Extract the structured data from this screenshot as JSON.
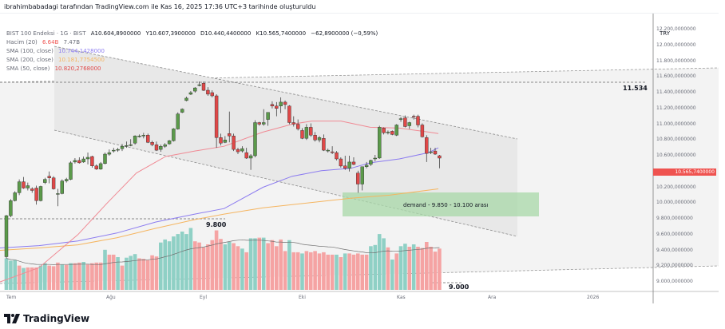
{
  "caption": "ibrahimbabadagi tarafından TradingView.com ile Kas 16, 2025 17:36 UTC+3 tarihinde oluşturuldu",
  "legend": {
    "symbol": "BIST 100 Endeksi · 1G · BIST",
    "open": "A10.604,8900000",
    "high": "Y10.607,3900000",
    "low": "D10.440,4400000",
    "close": "K10.565,7400000",
    "change": "−62,8900000 (−0,59%)",
    "volume_label": "Hacim (20)",
    "volume_value": "6.64B",
    "volume_ma": "7.47B",
    "sma100_label": "SMA (100, close)",
    "sma100_value": "10.744,1428000",
    "sma200_label": "SMA (200, close)",
    "sma200_value": "10.181,7754500",
    "sma50_label": "SMA (50, close)",
    "sma50_value": "10.820,2768000"
  },
  "colors": {
    "up": "#5b9a4a",
    "down": "#e04848",
    "vol_up": "#8fd0c5",
    "vol_down": "#f5a3a3",
    "sma50": "#f08a94",
    "sma100": "#8c7cf0",
    "sma200": "#f5b560",
    "demand_zone": "#a8d8a8",
    "channel": "#e6e6e6"
  },
  "price_axis": {
    "currency": "TRY",
    "ticks": [
      "12.200,0000000",
      "12.000,0000000",
      "11.800,0000000",
      "11.600,0000000",
      "11.400,0000000",
      "11.200,0000000",
      "11.000,0000000",
      "10.800,0000000",
      "10.600,0000000",
      "10.400,0000000",
      "10.200,0000000",
      "10.000,0000000",
      "9.800,0000000",
      "9.600,0000000",
      "9.400,0000000",
      "9.200,0000000",
      "9.000,0000000"
    ],
    "last_price": "10.565,7400000"
  },
  "time_axis": [
    "Tem",
    "Ağu",
    "Eyl",
    "Eki",
    "Kas",
    "Ara",
    "2026"
  ],
  "annotations": {
    "resistance": "11.534",
    "support_1": "9.800",
    "support_2": "9.000",
    "demand": "demand - 9.850 - 10.100 arası"
  },
  "brand": "TradingView",
  "chart_data": {
    "type": "candlestick",
    "title": "BIST 100 Endeksi · 1G · BIST",
    "xlabel": "",
    "ylabel": "TRY",
    "ylim": [
      8950,
      12250
    ],
    "x_ticks": [
      "Tem",
      "Ağu",
      "Eyl",
      "Eki",
      "Kas",
      "Ara",
      "2026"
    ],
    "candles": [
      [
        9320,
        9850,
        9300,
        9840
      ],
      [
        9840,
        10050,
        9820,
        10030
      ],
      [
        10030,
        10150,
        10020,
        10130
      ],
      [
        10130,
        10300,
        10100,
        10270
      ],
      [
        10270,
        10330,
        10180,
        10190
      ],
      [
        10190,
        10260,
        10160,
        10220
      ],
      [
        10180,
        10200,
        10130,
        10160
      ],
      [
        10190,
        10220,
        9980,
        10030
      ],
      [
        10030,
        10220,
        10020,
        10210
      ],
      [
        10260,
        10320,
        10240,
        10300
      ],
      [
        10340,
        10400,
        10250,
        10320
      ],
      [
        10320,
        10340,
        10170,
        10180
      ],
      [
        10110,
        10180,
        9960,
        10120
      ],
      [
        10120,
        10300,
        10110,
        10280
      ],
      [
        10280,
        10320,
        10260,
        10300
      ],
      [
        10300,
        10530,
        10290,
        10510
      ],
      [
        10520,
        10570,
        10500,
        10540
      ],
      [
        10540,
        10580,
        10500,
        10510
      ],
      [
        10520,
        10590,
        10510,
        10560
      ],
      [
        10560,
        10640,
        10490,
        10580
      ],
      [
        10590,
        10600,
        10450,
        10470
      ],
      [
        10470,
        10490,
        10420,
        10430
      ],
      [
        10430,
        10520,
        10420,
        10500
      ],
      [
        10500,
        10640,
        10490,
        10620
      ],
      [
        10620,
        10680,
        10600,
        10640
      ],
      [
        10660,
        10700,
        10640,
        10670
      ],
      [
        10670,
        10700,
        10650,
        10680
      ],
      [
        10690,
        10750,
        10660,
        10720
      ],
      [
        10720,
        10780,
        10700,
        10730
      ],
      [
        10730,
        10810,
        10720,
        10740
      ],
      [
        10760,
        10860,
        10740,
        10850
      ],
      [
        10850,
        10870,
        10830,
        10850
      ],
      [
        10860,
        10890,
        10820,
        10860
      ],
      [
        10860,
        10880,
        10760,
        10770
      ],
      [
        10770,
        10790,
        10720,
        10740
      ],
      [
        10740,
        10780,
        10660,
        10670
      ],
      [
        10680,
        10740,
        10650,
        10720
      ],
      [
        10720,
        10760,
        10700,
        10740
      ],
      [
        10750,
        10800,
        10740,
        10790
      ],
      [
        10790,
        10950,
        10780,
        10940
      ],
      [
        10940,
        11150,
        10930,
        11130
      ],
      [
        11150,
        11200,
        11140,
        11190
      ],
      [
        11300,
        11350,
        11290,
        11330
      ],
      [
        11380,
        11420,
        11370,
        11400
      ],
      [
        11420,
        11470,
        11400,
        11460
      ],
      [
        11490,
        11540,
        11480,
        11500
      ],
      [
        11520,
        11540,
        11420,
        11430
      ],
      [
        11430,
        11470,
        11360,
        11380
      ],
      [
        11400,
        11430,
        11340,
        11360
      ],
      [
        11360,
        11380,
        10700,
        10830
      ],
      [
        10830,
        10880,
        10730,
        10760
      ],
      [
        10770,
        10850,
        10760,
        10800
      ],
      [
        10880,
        11160,
        10770,
        10850
      ],
      [
        10850,
        10880,
        10660,
        10680
      ],
      [
        10680,
        10700,
        10620,
        10650
      ],
      [
        10660,
        10720,
        10640,
        10690
      ],
      [
        10640,
        10700,
        10560,
        10570
      ],
      [
        10570,
        10620,
        10420,
        10600
      ],
      [
        10600,
        11050,
        10580,
        11020
      ],
      [
        11020,
        11030,
        10980,
        11000
      ],
      [
        11000,
        11190,
        10980,
        11020
      ],
      [
        11060,
        11140,
        10980,
        11150
      ],
      [
        11250,
        11290,
        11200,
        11230
      ],
      [
        11230,
        11280,
        11100,
        11200
      ],
      [
        11230,
        11340,
        11140,
        11280
      ],
      [
        11280,
        11300,
        11190,
        11250
      ],
      [
        11230,
        11240,
        11000,
        11020
      ],
      [
        11020,
        11100,
        10970,
        11000
      ],
      [
        11000,
        11060,
        10920,
        10940
      ],
      [
        10920,
        10950,
        10810,
        10820
      ],
      [
        10820,
        11000,
        10800,
        10960
      ],
      [
        10960,
        11010,
        10840,
        10860
      ],
      [
        10860,
        10900,
        10780,
        10800
      ],
      [
        10800,
        10850,
        10770,
        10830
      ],
      [
        10820,
        10870,
        10660,
        10670
      ],
      [
        10670,
        10690,
        10640,
        10670
      ],
      [
        10650,
        10720,
        10620,
        10640
      ],
      [
        10640,
        10660,
        10540,
        10560
      ],
      [
        10560,
        10580,
        10450,
        10470
      ],
      [
        10470,
        10600,
        10420,
        10440
      ],
      [
        10440,
        10600,
        10400,
        10520
      ],
      [
        10520,
        10580,
        10480,
        10490
      ],
      [
        10380,
        10410,
        10130,
        10240
      ],
      [
        10240,
        10460,
        10160,
        10460
      ],
      [
        10460,
        10520,
        10440,
        10480
      ],
      [
        10490,
        10550,
        10470,
        10540
      ],
      [
        10560,
        10610,
        10530,
        10570
      ],
      [
        10570,
        10980,
        10560,
        10960
      ],
      [
        10950,
        10960,
        10870,
        10890
      ],
      [
        10890,
        10920,
        10870,
        10900
      ],
      [
        10910,
        10920,
        10860,
        10870
      ],
      [
        10860,
        11000,
        10850,
        10990
      ],
      [
        11060,
        11090,
        11030,
        11070
      ],
      [
        11080,
        11110,
        10960,
        10970
      ],
      [
        10980,
        11030,
        10940,
        11020
      ],
      [
        11100,
        11120,
        11060,
        11090
      ],
      [
        11100,
        11120,
        10960,
        10990
      ],
      [
        10990,
        11010,
        10830,
        10840
      ],
      [
        10830,
        10860,
        10520,
        10630
      ],
      [
        10640,
        10700,
        10620,
        10650
      ],
      [
        10660,
        10700,
        10610,
        10620
      ],
      [
        10600,
        10610,
        10440,
        10570
      ]
    ],
    "sma50": [
      [
        0,
        9000
      ],
      [
        20,
        9180
      ],
      [
        40,
        9600
      ],
      [
        55,
        10000
      ],
      [
        70,
        10380
      ],
      [
        85,
        10590
      ],
      [
        100,
        10660
      ],
      [
        115,
        10720
      ],
      [
        135,
        10900
      ],
      [
        150,
        11000
      ],
      [
        160,
        11040
      ],
      [
        175,
        11040
      ],
      [
        190,
        10960
      ],
      [
        205,
        10950
      ],
      [
        220,
        10900
      ],
      [
        225,
        10880
      ]
    ],
    "sma100": [
      [
        0,
        9430
      ],
      [
        20,
        9460
      ],
      [
        40,
        9520
      ],
      [
        60,
        9620
      ],
      [
        80,
        9760
      ],
      [
        100,
        9860
      ],
      [
        115,
        9930
      ],
      [
        135,
        10200
      ],
      [
        150,
        10340
      ],
      [
        165,
        10410
      ],
      [
        180,
        10440
      ],
      [
        190,
        10510
      ],
      [
        205,
        10560
      ],
      [
        220,
        10640
      ],
      [
        225,
        10700
      ]
    ],
    "sma200": [
      [
        0,
        9400
      ],
      [
        20,
        9430
      ],
      [
        40,
        9470
      ],
      [
        60,
        9560
      ],
      [
        80,
        9680
      ],
      [
        100,
        9790
      ],
      [
        115,
        9860
      ],
      [
        135,
        9940
      ],
      [
        150,
        9980
      ],
      [
        165,
        10020
      ],
      [
        180,
        10060
      ],
      [
        200,
        10100
      ],
      [
        225,
        10180
      ]
    ],
    "volume": [
      [
        "u",
        52
      ],
      [
        "u",
        48
      ],
      [
        "u",
        49
      ],
      [
        "d",
        40
      ],
      [
        "u",
        36
      ],
      [
        "d",
        37
      ],
      [
        "d",
        37
      ],
      [
        "d",
        37
      ],
      [
        "u",
        40
      ],
      [
        "u",
        44
      ],
      [
        "d",
        40
      ],
      [
        "d",
        39
      ],
      [
        "d",
        45
      ],
      [
        "u",
        42
      ],
      [
        "d",
        41
      ],
      [
        "u",
        44
      ],
      [
        "d",
        44
      ],
      [
        "d",
        45
      ],
      [
        "u",
        46
      ],
      [
        "d",
        42
      ],
      [
        "d",
        44
      ],
      [
        "d",
        45
      ],
      [
        "d",
        45
      ],
      [
        "u",
        66
      ],
      [
        "d",
        58
      ],
      [
        "d",
        58
      ],
      [
        "u",
        54
      ],
      [
        "d",
        40
      ],
      [
        "u",
        53
      ],
      [
        "u",
        56
      ],
      [
        "u",
        59
      ],
      [
        "d",
        52
      ],
      [
        "d",
        51
      ],
      [
        "d",
        49
      ],
      [
        "d",
        57
      ],
      [
        "d",
        55
      ],
      [
        "u",
        78
      ],
      [
        "u",
        83
      ],
      [
        "u",
        80
      ],
      [
        "u",
        88
      ],
      [
        "u",
        92
      ],
      [
        "u",
        96
      ],
      [
        "u",
        92
      ],
      [
        "u",
        102
      ],
      [
        "d",
        80
      ],
      [
        "d",
        78
      ],
      [
        "d",
        70
      ],
      [
        "d",
        75
      ],
      [
        "d",
        82
      ],
      [
        "d",
        98
      ],
      [
        "d",
        84
      ],
      [
        "u",
        75
      ],
      [
        "u",
        79
      ],
      [
        "d",
        77
      ],
      [
        "d",
        72
      ],
      [
        "u",
        68
      ],
      [
        "d",
        62
      ],
      [
        "u",
        85
      ],
      [
        "u",
        85
      ],
      [
        "d",
        86
      ],
      [
        "u",
        86
      ],
      [
        "d",
        77
      ],
      [
        "d",
        82
      ],
      [
        "d",
        72
      ],
      [
        "d",
        83
      ],
      [
        "d",
        64
      ],
      [
        "u",
        82
      ],
      [
        "d",
        62
      ],
      [
        "d",
        62
      ],
      [
        "u",
        60
      ],
      [
        "d",
        64
      ],
      [
        "d",
        62
      ],
      [
        "d",
        64
      ],
      [
        "d",
        60
      ],
      [
        "d",
        62
      ],
      [
        "d",
        58
      ],
      [
        "d",
        58
      ],
      [
        "u",
        58
      ],
      [
        "d",
        54
      ],
      [
        "u",
        60
      ],
      [
        "d",
        60
      ],
      [
        "d",
        58
      ],
      [
        "d",
        60
      ],
      [
        "d",
        58
      ],
      [
        "d",
        58
      ],
      [
        "u",
        72
      ],
      [
        "u",
        74
      ],
      [
        "u",
        92
      ],
      [
        "u",
        85
      ],
      [
        "d",
        70
      ],
      [
        "u",
        50
      ],
      [
        "d",
        60
      ],
      [
        "u",
        72
      ],
      [
        "u",
        76
      ],
      [
        "d",
        71
      ],
      [
        "u",
        75
      ],
      [
        "d",
        71
      ],
      [
        "d",
        69
      ],
      [
        "d",
        79
      ],
      [
        "d",
        71
      ],
      [
        "d",
        63
      ],
      [
        "d",
        68
      ]
    ]
  }
}
